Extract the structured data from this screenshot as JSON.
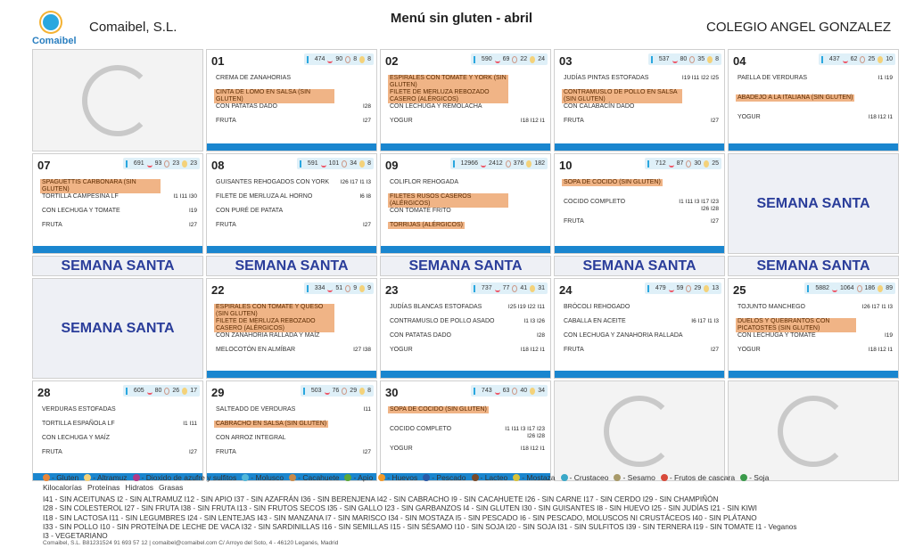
{
  "header": {
    "logo_text": "Comaibel",
    "company": "Comaibel, S.L.",
    "title": "Menú sin gluten - abril",
    "school": "COLEGIO ANGEL GONZALEZ"
  },
  "semana_label": "SEMANA SANTA",
  "days": {
    "d01": {
      "num": "01",
      "kcal": "474",
      "prot": "90",
      "hid": "8",
      "gras": "8",
      "dishes": [
        "CREMA DE ZANAHORIAS",
        "CINTA DE LOMO EN SALSA (SIN GLUTEN)",
        "CON PATATAS DADO",
        "FRUTA"
      ],
      "codes": [
        "",
        "",
        "I28",
        "I27"
      ]
    },
    "d02": {
      "num": "02",
      "kcal": "590",
      "prot": "69",
      "hid": "22",
      "gras": "24",
      "dishes": [
        "ESPIRALES CON TOMATE Y YORK (SIN GLUTEN)",
        "FILETE DE MERLUZA REBOZADO CASERO (ALÉRGICOS)",
        "CON LECHUGA Y REMOLACHA",
        "YOGUR"
      ],
      "codes": [
        "",
        "",
        "",
        "I18  I12  I1"
      ]
    },
    "d03": {
      "num": "03",
      "kcal": "537",
      "prot": "80",
      "hid": "35",
      "gras": "8",
      "dishes": [
        "JUDÍAS PINTAS ESTOFADAS",
        "CONTRAMUSLO DE POLLO EN SALSA (SIN GLUTEN)",
        "CON CALABACÍN DADO",
        "FRUTA"
      ],
      "codes": [
        "I19  I11  I22  I25",
        "",
        "",
        "I27"
      ]
    },
    "d04": {
      "num": "04",
      "kcal": "437",
      "prot": "62",
      "hid": "25",
      "gras": "10",
      "dishes": [
        "PAELLA DE VERDURAS",
        "ABADEJO A LA ITALIANA (SIN GLUTEN)",
        "YOGUR"
      ],
      "codes": [
        "I1  I19",
        "",
        "I18  I12  I1"
      ]
    },
    "d07": {
      "num": "07",
      "kcal": "691",
      "prot": "93",
      "hid": "23",
      "gras": "23",
      "dishes": [
        "SPAGUETTIS CARBONARA (SIN GLUTEN)",
        "TORTILLA CAMPESINA LF",
        "CON LECHUGA Y TOMATE",
        "FRUTA"
      ],
      "codes": [
        "",
        "I1  I11  I30",
        "I19",
        "I27"
      ]
    },
    "d08": {
      "num": "08",
      "kcal": "591",
      "prot": "101",
      "hid": "34",
      "gras": "8",
      "dishes": [
        "GUISANTES REHOGADOS CON YORK",
        "FILETE DE MERLUZA AL HORNO",
        "CON PURÉ DE PATATA",
        "FRUTA"
      ],
      "codes": [
        "I26  I17  I1  I3",
        "I6  I8",
        "",
        "I27"
      ]
    },
    "d09": {
      "num": "09",
      "kcal": "12966",
      "prot": "2412",
      "hid": "376",
      "gras": "182",
      "dishes": [
        "COLIFLOR REHOGADA",
        "FILETES RUSOS CASEROS (ALÉRGICOS)",
        "CON TOMATE FRITO",
        "TORRIJAS (ALÉRGICOS)"
      ],
      "codes": [
        "",
        "",
        "",
        ""
      ]
    },
    "d10": {
      "num": "10",
      "kcal": "712",
      "prot": "87",
      "hid": "30",
      "gras": "25",
      "dishes": [
        "SOPA DE COCIDO (SIN GLUTEN)",
        "COCIDO COMPLETO",
        "FRUTA"
      ],
      "codes": [
        "",
        "I1  I11  I3  I17  I23  I26  I28",
        "I27"
      ]
    },
    "d22": {
      "num": "22",
      "kcal": "334",
      "prot": "51",
      "hid": "9",
      "gras": "9",
      "dishes": [
        "ESPIRALES CON TOMATE Y QUESO (SIN GLUTEN)",
        "FILETE DE MERLUZA REBOZADO CASERO (ALÉRGICOS)",
        "CON ZANAHORIA RALLADA Y MAÍZ",
        "MELOCOTÓN EN ALMÍBAR"
      ],
      "codes": [
        "",
        "",
        "",
        "I27  I38"
      ]
    },
    "d23": {
      "num": "23",
      "kcal": "737",
      "prot": "77",
      "hid": "41",
      "gras": "31",
      "dishes": [
        "JUDÍAS BLANCAS ESTOFADAS",
        "CONTRAMUSLO DE POLLO ASADO",
        "CON PATATAS DADO",
        "YOGUR"
      ],
      "codes": [
        "I25  I19  I22  I11",
        "I1  I3  I26",
        "I28",
        "I18  I12  I1"
      ]
    },
    "d24": {
      "num": "24",
      "kcal": "479",
      "prot": "59",
      "hid": "29",
      "gras": "13",
      "dishes": [
        "BRÓCOLI REHOGADO",
        "CABALLA EN ACEITE",
        "CON LECHUGA Y ZANAHORIA RALLADA",
        "FRUTA"
      ],
      "codes": [
        "",
        "I6  I17  I1  I3",
        "",
        "I27"
      ]
    },
    "d25": {
      "num": "25",
      "kcal": "5882",
      "prot": "1064",
      "hid": "186",
      "gras": "89",
      "dishes": [
        "TOJUNTO MANCHEGO",
        "DUELOS Y QUEBRANTOS CON PICATOSTES (SIN GLUTEN)",
        "CON LECHUGA Y TOMATE",
        "YOGUR"
      ],
      "codes": [
        "I26  I17  I1  I3",
        "",
        "I19",
        "I18  I12  I1"
      ]
    },
    "d28": {
      "num": "28",
      "kcal": "605",
      "prot": "80",
      "hid": "26",
      "gras": "17",
      "dishes": [
        "VERDURAS ESTOFADAS",
        "TORTILLA ESPAÑOLA LF",
        "CON LECHUGA Y MAÍZ",
        "FRUTA"
      ],
      "codes": [
        "",
        "I1  I11",
        "",
        "I27"
      ]
    },
    "d29": {
      "num": "29",
      "kcal": "503",
      "prot": "76",
      "hid": "29",
      "gras": "8",
      "dishes": [
        "SALTEADO DE VERDURAS",
        "CABRACHO EN SALSA (SIN GLUTEN)",
        "CON ARROZ INTEGRAL",
        "FRUTA"
      ],
      "codes": [
        "I11",
        "",
        "",
        "I27"
      ]
    },
    "d30": {
      "num": "30",
      "kcal": "743",
      "prot": "63",
      "hid": "40",
      "gras": "34",
      "dishes": [
        "SOPA DE COCIDO (SIN GLUTEN)",
        "COCIDO COMPLETO",
        "YOGUR"
      ],
      "codes": [
        "",
        "I1  I11  I3  I17  I23  I26  I28",
        "I18  I12  I1"
      ]
    }
  },
  "allergens": [
    {
      "label": "Gluten",
      "color": "#e8863a"
    },
    {
      "label": "Altramuz",
      "color": "#f4d27a"
    },
    {
      "label": "Dioxido de azufre y sulfitos",
      "color": "#b03a8a"
    },
    {
      "label": "Molusco",
      "color": "#53b8d9"
    },
    {
      "label": "Cacahuete",
      "color": "#c98a4a"
    },
    {
      "label": "Apio",
      "color": "#5aa83a"
    },
    {
      "label": "Huevos",
      "color": "#f39a2a"
    },
    {
      "label": "Pescado",
      "color": "#2a5aa8"
    },
    {
      "label": "Lacteo",
      "color": "#7a4a2a"
    },
    {
      "label": "Mostaza",
      "color": "#d8c23a"
    },
    {
      "label": "Crustaceo",
      "color": "#3aa8c8"
    },
    {
      "label": "Sesamo",
      "color": "#a89a6a"
    },
    {
      "label": "Frutos de cascara",
      "color": "#d84a3a"
    },
    {
      "label": "Soja",
      "color": "#3a9a4a"
    }
  ],
  "nutri_legend": [
    "Kilocalorías",
    "Proteínas",
    "Hidratos",
    "Grasas"
  ],
  "code_lines": [
    "I41 - SIN ACEITUNAS   I2 - SIN ALTRAMUZ   I12 - SIN APIO   I37 - SIN AZAFRÁN   I36 - SIN BERENJENA   I42 - SIN CABRACHO   I9 - SIN CACAHUETE   I26 - SIN CARNE   I17 - SIN CERDO   I29 - SIN CHAMPIÑÓN",
    "I28 - SIN COLESTEROL   I27 - SIN FRUTA   I38 - SIN FRUTA   I13 - SIN FRUTOS SECOS   I35 - SIN GALLO   I23 - SIN GARBANZOS   I4 - SIN GLUTEN   I30 - SIN GUISANTES   I8 - SIN HUEVO   I25 - SIN JUDÍAS   I21 - SIN KIWI",
    "I18 - SIN LACTOSA   I11 - SIN LEGUMBRES   I24 - SIN LENTEJAS   I43 - SIN MANZANA   I7 - SIN MARISCO   I34 - SIN MOSTAZA   I5 - SIN PESCADO   I6 - SIN PESCADO, MOLUSCOS NI CRUSTÁCEOS   I40 - SIN PLÁTANO",
    "I33 - SIN POLLO   I10 - SIN PROTEÍNA DE LECHE DE VACA   I32 - SIN SARDINILLAS   I16 - SIN SEMILLAS   I15 - SIN SÉSAMO   I10 - SIN SOJA   I20 - SIN SOJA   I31 - SIN SULFITOS   I39 - SIN TERNERA   I19 - SIN TOMATE   I1 - Veganos",
    "I3 - VEGETARIANO"
  ],
  "footer": "Comaibel, S.L.     B81231524     91 693 57 12 | comaibel@comaibel.com     C/ Arroyo del Soto, 4 - 46120 Leganés, Madrid"
}
